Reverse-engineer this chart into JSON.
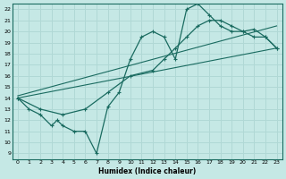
{
  "xlabel": "Humidex (Indice chaleur)",
  "ylabel": "",
  "bg_color": "#c5e8e5",
  "grid_color": "#b0d8d5",
  "line_color": "#1a6b60",
  "xlim": [
    -0.5,
    23.5
  ],
  "ylim": [
    8.5,
    22.5
  ],
  "xticks": [
    0,
    1,
    2,
    3,
    4,
    5,
    6,
    7,
    8,
    9,
    10,
    11,
    12,
    13,
    14,
    15,
    16,
    17,
    18,
    19,
    20,
    21,
    22,
    23
  ],
  "yticks": [
    9,
    10,
    11,
    12,
    13,
    14,
    15,
    16,
    17,
    18,
    19,
    20,
    21,
    22
  ],
  "straight_line_x": [
    0,
    23
  ],
  "straight_line_y": [
    14.0,
    18.5
  ],
  "straight_line2_x": [
    0,
    23
  ],
  "straight_line2_y": [
    14.2,
    20.5
  ],
  "main_curve_x": [
    0,
    1,
    2,
    3,
    3.5,
    4,
    5,
    6,
    7,
    8,
    9,
    10,
    11,
    12,
    13,
    14,
    15,
    16,
    17,
    18,
    19,
    20,
    21,
    22,
    23
  ],
  "main_curve_y": [
    14,
    13,
    12.5,
    11.5,
    12,
    11.5,
    11,
    11,
    9,
    13.2,
    14.5,
    17.5,
    19.5,
    20.0,
    19.5,
    17.5,
    22.0,
    22.5,
    21.5,
    20.5,
    20.0,
    20.0,
    19.5,
    19.5,
    18.5
  ],
  "smooth_curve_x": [
    0,
    2,
    4,
    6,
    8,
    10,
    12,
    13,
    14,
    15,
    16,
    17,
    18,
    19,
    20,
    21,
    22,
    23
  ],
  "smooth_curve_y": [
    14,
    13,
    12.5,
    13,
    14.5,
    16,
    16.5,
    17.5,
    18.5,
    19.5,
    20.5,
    21.0,
    21.0,
    20.5,
    20.0,
    20.2,
    19.5,
    18.5
  ]
}
